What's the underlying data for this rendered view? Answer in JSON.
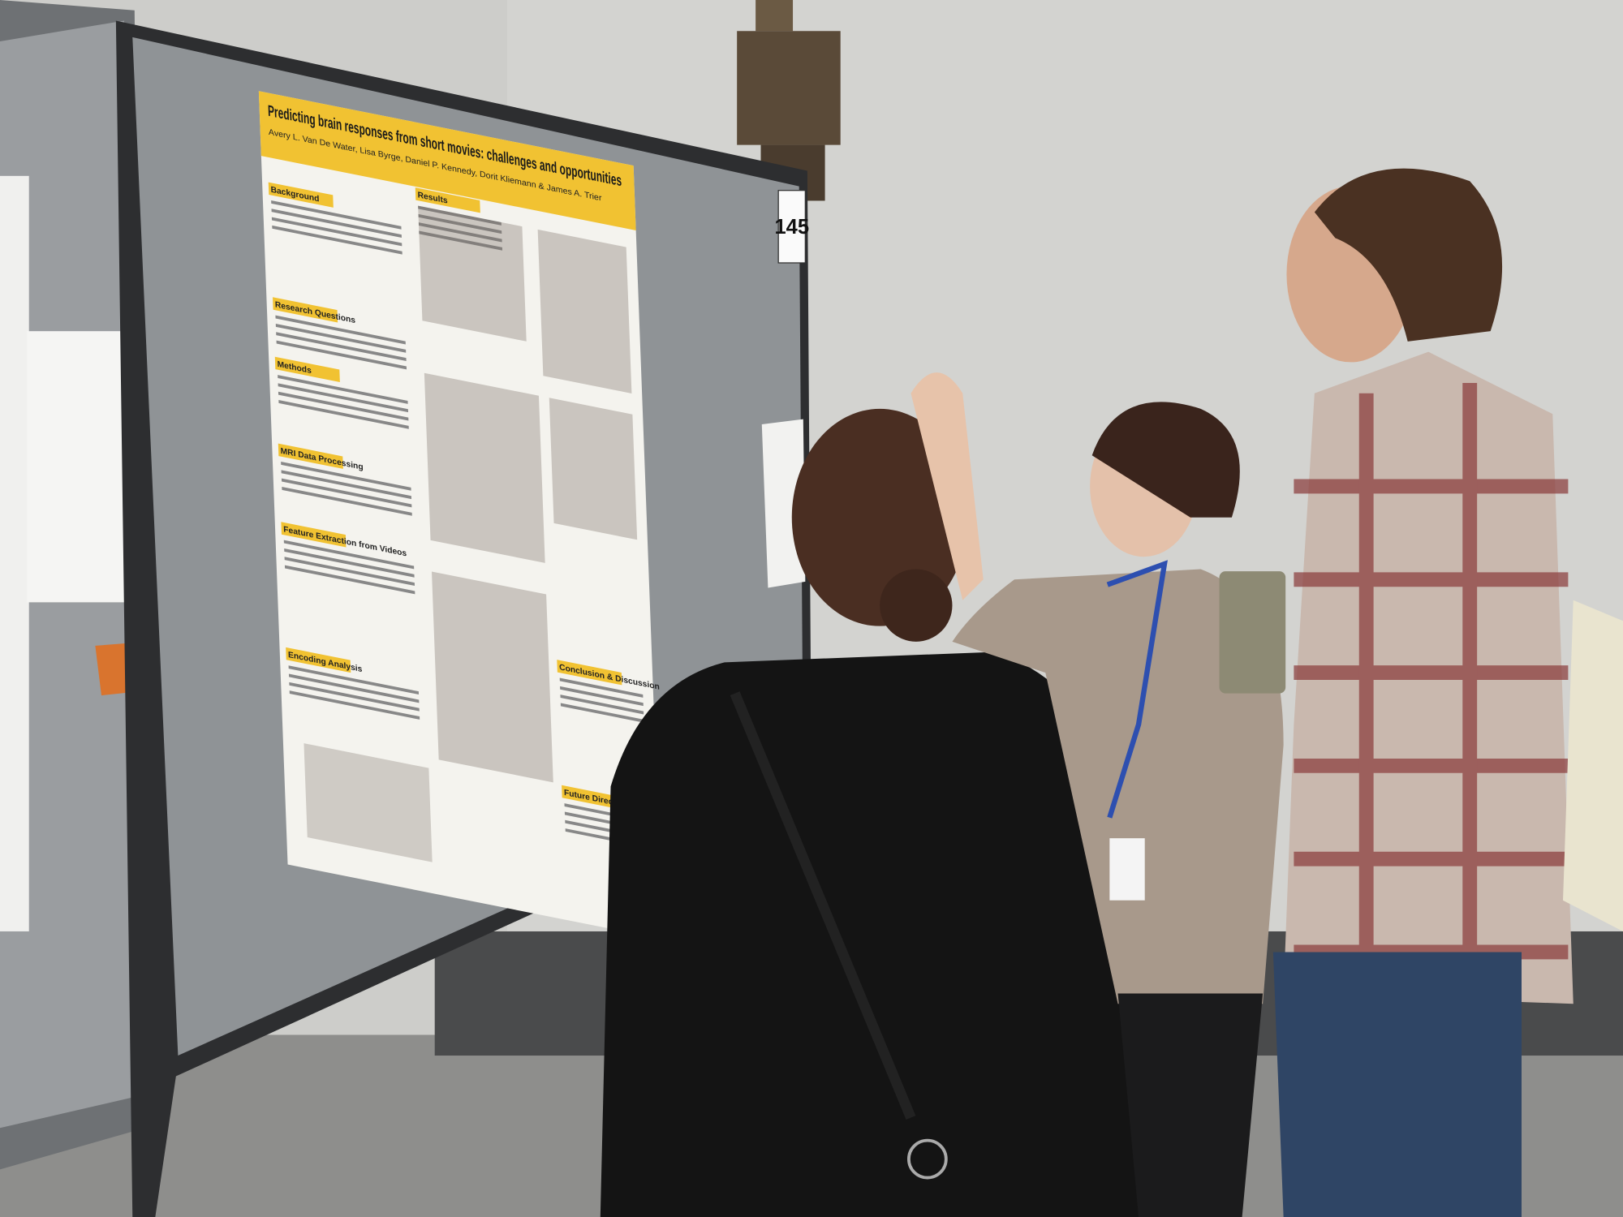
{
  "poster": {
    "title": "Predicting brain responses from short movies: challenges and opportunities",
    "authors": "Avery L. Van De Water, Lisa Byrge, Daniel P. Kennedy, Dorit Kliemann & James A. Trier",
    "sections": [
      "Background",
      "Research Questions",
      "Methods",
      "MRI Data Processing",
      "Feature Extraction from Videos",
      "Encoding Analysis",
      "Results",
      "Conclusion & Discussion",
      "Future Directions"
    ]
  },
  "board_number": "145"
}
